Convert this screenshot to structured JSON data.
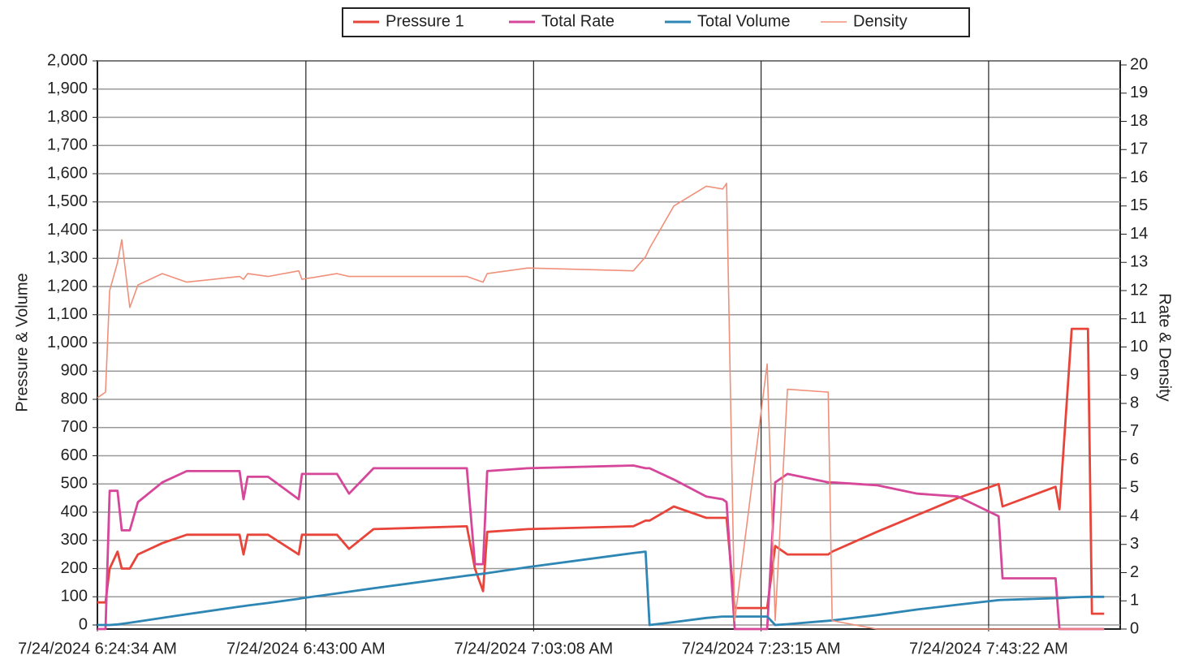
{
  "chart_data": {
    "type": "line",
    "y_label": "Pressure & Volume",
    "y2_label": "Rate & Density",
    "x": [
      "2024-07-24T06:24:34",
      "2024-07-24T06:25:17",
      "2024-07-24T06:25:39",
      "2024-07-24T06:26:21",
      "2024-07-24T06:26:43",
      "2024-07-24T06:27:26",
      "2024-07-24T06:28:09",
      "2024-07-24T06:30:18",
      "2024-07-24T06:32:28",
      "2024-07-24T06:37:08",
      "2024-07-24T06:37:29",
      "2024-07-24T06:37:51",
      "2024-07-24T06:39:39",
      "2024-07-24T06:42:22",
      "2024-07-24T06:42:39",
      "2024-07-24T06:45:45",
      "2024-07-24T06:46:49",
      "2024-07-24T06:48:59",
      "2024-07-24T06:57:14",
      "2024-07-24T06:57:57",
      "2024-07-24T06:58:40",
      "2024-07-24T06:59:02",
      "2024-07-24T07:02:37",
      "2024-07-24T07:11:57",
      "2024-07-24T07:13:02",
      "2024-07-24T07:13:23",
      "2024-07-24T07:15:32",
      "2024-07-24T07:18:24",
      "2024-07-24T07:19:51",
      "2024-07-24T07:20:12",
      "2024-07-24T07:20:55",
      "2024-07-24T07:23:47",
      "2024-07-24T07:24:30",
      "2024-07-24T07:25:35",
      "2024-07-24T07:29:11",
      "2024-07-24T07:29:32",
      "2024-07-24T07:33:29",
      "2024-07-24T07:37:04",
      "2024-07-24T07:40:39",
      "2024-07-24T07:44:15",
      "2024-07-24T07:44:36",
      "2024-07-24T07:49:17",
      "2024-07-24T07:49:38",
      "2024-07-24T07:50:43",
      "2024-07-24T07:52:09",
      "2024-07-24T07:52:30",
      "2024-07-24T07:53:35"
    ],
    "xlim": [
      "2024-07-24T06:24:34",
      "2024-07-24T07:55:00"
    ],
    "xticks": [
      {
        "value": "2024-07-24T06:24:34",
        "label": "7/24/2024 6:24:34 AM"
      },
      {
        "value": "2024-07-24T06:43:00",
        "label": "7/24/2024 6:43:00 AM"
      },
      {
        "value": "2024-07-24T07:03:08",
        "label": "7/24/2024 7:03:08 AM"
      },
      {
        "value": "2024-07-24T07:23:15",
        "label": "7/24/2024 7:23:15 AM"
      },
      {
        "value": "2024-07-24T07:43:22",
        "label": "7/24/2024 7:43:22 AM"
      }
    ],
    "ylim": [
      0,
      2000
    ],
    "yticks": [
      0,
      100,
      200,
      300,
      400,
      500,
      600,
      700,
      800,
      900,
      {
        "value": 1000,
        "label": "1,000"
      },
      {
        "value": 1100,
        "label": "1,100"
      },
      {
        "value": 1200,
        "label": "1,200"
      },
      {
        "value": 1300,
        "label": "1,300"
      },
      {
        "value": 1400,
        "label": "1,400"
      },
      {
        "value": 1500,
        "label": "1,500"
      },
      {
        "value": 1600,
        "label": "1,600"
      },
      {
        "value": 1700,
        "label": "1,700"
      },
      {
        "value": 1800,
        "label": "1,800"
      },
      {
        "value": 1900,
        "label": "1,900"
      },
      {
        "value": 2000,
        "label": "2,000"
      }
    ],
    "y2lim": [
      0,
      20
    ],
    "y2ticks": [
      0,
      1,
      2,
      3,
      4,
      5,
      6,
      7,
      8,
      9,
      10,
      11,
      12,
      13,
      14,
      15,
      16,
      17,
      18,
      19,
      20
    ],
    "grid": true,
    "series": [
      {
        "name": "Pressure 1",
        "color": "#e8443a",
        "values": [
          80,
          80,
          200,
          260,
          200,
          200,
          250,
          290,
          320,
          320,
          250,
          320,
          320,
          250,
          320,
          320,
          270,
          340,
          350,
          200,
          120,
          330,
          340,
          350,
          370,
          370,
          420,
          380,
          380,
          380,
          60,
          60,
          280,
          250,
          250,
          260,
          330,
          390,
          450,
          500,
          420,
          490,
          410,
          1050,
          1050,
          40,
          40
        ]
      },
      {
        "name": "Total Rate",
        "color": "#d6479a",
        "axis": "y2",
        "values": [
          0,
          0,
          4.9,
          4.9,
          3.5,
          3.5,
          4.5,
          5.2,
          5.6,
          5.6,
          4.6,
          5.4,
          5.4,
          4.6,
          5.5,
          5.5,
          4.8,
          5.7,
          5.7,
          2.3,
          2.3,
          5.6,
          5.7,
          5.8,
          5.7,
          5.7,
          5.3,
          4.7,
          4.6,
          4.5,
          0,
          0,
          5.2,
          5.5,
          5.2,
          5.2,
          5.1,
          4.8,
          4.7,
          4.0,
          1.8,
          1.8,
          0,
          0,
          0,
          0,
          0
        ]
      },
      {
        "name": "Total Volume",
        "color": "#2e86b4",
        "values": [
          0,
          0,
          0,
          2,
          4,
          8,
          12,
          25,
          38,
          65,
          67,
          69,
          78,
          93,
          95,
          112,
          118,
          130,
          175,
          178,
          182,
          184,
          205,
          255,
          260,
          0,
          10,
          25,
          30,
          30,
          30,
          30,
          0,
          3,
          15,
          16,
          35,
          55,
          72,
          88,
          89,
          95,
          95,
          98,
          100,
          100,
          100
        ]
      },
      {
        "name": "Density",
        "color": "#f0907a",
        "axis": "y2",
        "values": [
          8.2,
          8.4,
          12,
          13,
          13.8,
          11.4,
          12.2,
          12.6,
          12.3,
          12.5,
          12.4,
          12.6,
          12.5,
          12.7,
          12.4,
          12.6,
          12.5,
          12.5,
          12.5,
          12.4,
          12.3,
          12.6,
          12.8,
          12.7,
          13.2,
          13.5,
          15,
          15.7,
          15.6,
          15.8,
          0.3,
          9.4,
          0.3,
          8.5,
          8.4,
          0.3,
          0,
          0,
          0,
          0,
          0,
          0,
          0,
          0,
          0,
          0,
          0
        ]
      }
    ]
  }
}
